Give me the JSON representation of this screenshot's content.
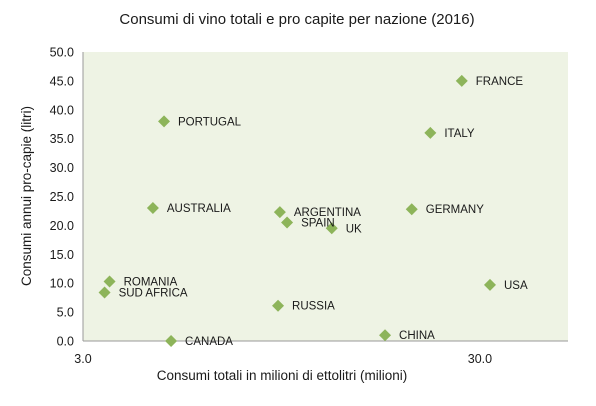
{
  "chart_data": {
    "type": "scatter",
    "title": "Consumi di vino totali e pro capite per nazione (2016)",
    "xlabel": "Consumi totali in milioni di ettolitri (milioni)",
    "ylabel": "Consumi annui pro-capie (litri)",
    "x_scale": "log",
    "xlim": [
      3.0,
      50.0
    ],
    "ylim": [
      0,
      50
    ],
    "x_ticks": [
      {
        "value": 3.0,
        "label": "3.0"
      },
      {
        "value": 30.0,
        "label": "30.0"
      }
    ],
    "y_ticks": [
      {
        "value": 0,
        "label": "0.0"
      },
      {
        "value": 5,
        "label": "5.0"
      },
      {
        "value": 10,
        "label": "10.0"
      },
      {
        "value": 15,
        "label": "15.0"
      },
      {
        "value": 20,
        "label": "20.0"
      },
      {
        "value": 25,
        "label": "25.0"
      },
      {
        "value": 30,
        "label": "30.0"
      },
      {
        "value": 35,
        "label": "35.0"
      },
      {
        "value": 40,
        "label": "40.0"
      },
      {
        "value": 45,
        "label": "45.0"
      },
      {
        "value": 50,
        "label": "50.0"
      }
    ],
    "grid": false,
    "legend": "none",
    "colors": {
      "plot_background": "#eef3e4",
      "marker": "#8db45a",
      "axis": "#9a9a9a"
    },
    "points": [
      {
        "label": "FRANCE",
        "x": 27.0,
        "y": 45.0
      },
      {
        "label": "PORTUGAL",
        "x": 4.8,
        "y": 38.0
      },
      {
        "label": "ITALY",
        "x": 22.5,
        "y": 36.0
      },
      {
        "label": "AUSTRALIA",
        "x": 4.5,
        "y": 23.0
      },
      {
        "label": "ARGENTINA",
        "x": 9.4,
        "y": 22.3
      },
      {
        "label": "GERMANY",
        "x": 20.2,
        "y": 22.8
      },
      {
        "label": "SPAIN",
        "x": 9.8,
        "y": 20.5
      },
      {
        "label": "UK",
        "x": 12.7,
        "y": 19.5
      },
      {
        "label": "ROMANIA",
        "x": 3.5,
        "y": 10.3
      },
      {
        "label": "SUD AFRICA",
        "x": 3.4,
        "y": 8.4
      },
      {
        "label": "USA",
        "x": 31.8,
        "y": 9.7
      },
      {
        "label": "RUSSIA",
        "x": 9.3,
        "y": 6.1
      },
      {
        "label": "CHINA",
        "x": 17.3,
        "y": 1.0
      },
      {
        "label": "CANADA",
        "x": 5.0,
        "y": 0.0
      }
    ]
  }
}
